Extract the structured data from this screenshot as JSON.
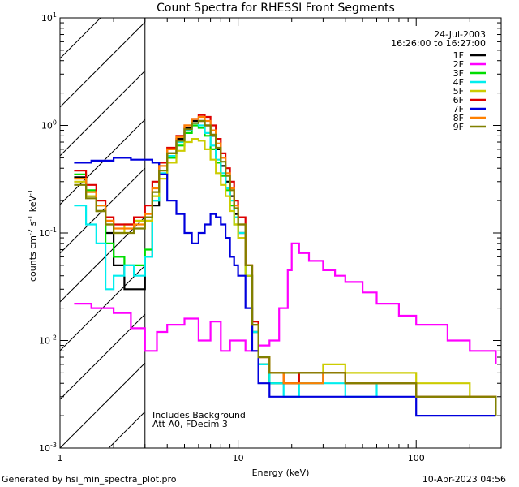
{
  "chart_data": {
    "type": "line",
    "title": "Count Spectra for RHESSI Front Segments",
    "xlabel": "Energy (keV)",
    "ylabel_parts": [
      "counts cm",
      "-2",
      " s",
      "-1",
      " keV",
      "-1"
    ],
    "x_scale": "log",
    "y_scale": "log",
    "xlim": [
      1,
      300
    ],
    "ylim": [
      0.001,
      10
    ],
    "x_ticks": [
      {
        "value": 1,
        "label": "1"
      },
      {
        "value": 10,
        "label": "10"
      },
      {
        "value": 100,
        "label": "100"
      }
    ],
    "y_ticks": [
      {
        "value": 0.001,
        "base": "10",
        "exp": "-3"
      },
      {
        "value": 0.01,
        "base": "10",
        "exp": "-2"
      },
      {
        "value": 0.1,
        "base": "10",
        "exp": "-1"
      },
      {
        "value": 1,
        "base": "10",
        "exp": "0"
      },
      {
        "value": 10,
        "base": "10",
        "exp": "1"
      }
    ],
    "date": "24-Jul-2003",
    "time_range": "16:26:00 to 16:27:00",
    "annotations": [
      "Includes Background",
      "Att A0, FDecim 3"
    ],
    "excluded_region_keV": [
      1,
      3
    ],
    "footer_left": "Generated by hsi_min_spectra_plot.pro",
    "footer_right": "10-Apr-2023 04:56",
    "legend_position": "top-right",
    "series": [
      {
        "name": "1F",
        "color": "#000000",
        "x": [
          1.2,
          1.4,
          1.6,
          1.8,
          2.0,
          2.3,
          2.6,
          3.0,
          3.3,
          3.6,
          4.0,
          4.5,
          5.0,
          5.5,
          6.0,
          6.5,
          7.0,
          7.5,
          8.0,
          8.5,
          9.0,
          9.5,
          10,
          11,
          12,
          13,
          15,
          18,
          22,
          30,
          40,
          60,
          100,
          200,
          280
        ],
        "y": [
          0.33,
          0.22,
          0.16,
          0.1,
          0.05,
          0.03,
          0.03,
          0.06,
          0.18,
          0.35,
          0.55,
          0.75,
          0.95,
          1.1,
          1.1,
          1.0,
          0.8,
          0.6,
          0.42,
          0.3,
          0.22,
          0.15,
          0.1,
          0.04,
          0.012,
          0.006,
          0.004,
          0.004,
          0.004,
          0.005,
          0.004,
          0.004,
          0.003,
          0.003,
          0.002
        ]
      },
      {
        "name": "2F",
        "color": "#ff00ff",
        "x": [
          1.2,
          1.5,
          2.0,
          2.5,
          3.0,
          3.5,
          4.0,
          5.0,
          6.0,
          7.0,
          8.0,
          9.0,
          10,
          11,
          12,
          13,
          15,
          17,
          19,
          20,
          22,
          25,
          30,
          35,
          40,
          50,
          60,
          80,
          100,
          150,
          200,
          280
        ],
        "y": [
          0.022,
          0.02,
          0.018,
          0.013,
          0.008,
          0.012,
          0.014,
          0.016,
          0.01,
          0.015,
          0.008,
          0.01,
          0.01,
          0.008,
          0.008,
          0.009,
          0.01,
          0.02,
          0.045,
          0.08,
          0.065,
          0.055,
          0.045,
          0.04,
          0.035,
          0.028,
          0.022,
          0.017,
          0.014,
          0.01,
          0.008,
          0.006
        ]
      },
      {
        "name": "3F",
        "color": "#00dd00",
        "x": [
          1.2,
          1.4,
          1.6,
          1.8,
          2.0,
          2.3,
          2.6,
          3.0,
          3.3,
          3.6,
          4.0,
          4.5,
          5.0,
          5.5,
          6.0,
          6.5,
          7.0,
          7.5,
          8.0,
          8.5,
          9.0,
          9.5,
          10,
          11,
          12,
          13,
          15,
          18,
          22,
          30,
          40,
          60,
          100,
          200,
          280
        ],
        "y": [
          0.35,
          0.25,
          0.18,
          0.08,
          0.06,
          0.05,
          0.05,
          0.07,
          0.2,
          0.35,
          0.5,
          0.65,
          0.85,
          1.0,
          0.95,
          0.8,
          0.6,
          0.45,
          0.34,
          0.25,
          0.18,
          0.12,
          0.09,
          0.04,
          0.012,
          0.006,
          0.004,
          0.004,
          0.005,
          0.005,
          0.004,
          0.004,
          0.003,
          0.003,
          0.002
        ]
      },
      {
        "name": "4F",
        "color": "#00eeee",
        "x": [
          1.2,
          1.4,
          1.6,
          1.8,
          2.0,
          2.3,
          2.6,
          3.0,
          3.3,
          3.6,
          4.0,
          4.5,
          5.0,
          5.5,
          6.0,
          6.5,
          7.0,
          7.5,
          8.0,
          8.5,
          9.0,
          9.5,
          10,
          11,
          12,
          13,
          15,
          18,
          22,
          30,
          40,
          60,
          100,
          200,
          280
        ],
        "y": [
          0.18,
          0.12,
          0.08,
          0.03,
          0.04,
          0.05,
          0.04,
          0.06,
          0.2,
          0.36,
          0.52,
          0.7,
          0.9,
          1.05,
          1.0,
          0.85,
          0.65,
          0.48,
          0.36,
          0.26,
          0.2,
          0.14,
          0.1,
          0.04,
          0.012,
          0.006,
          0.004,
          0.003,
          0.004,
          0.004,
          0.003,
          0.004,
          0.003,
          0.003,
          0.002
        ]
      },
      {
        "name": "5F",
        "color": "#cccc00",
        "x": [
          1.2,
          1.4,
          1.6,
          1.8,
          2.0,
          2.3,
          2.6,
          3.0,
          3.3,
          3.6,
          4.0,
          4.5,
          5.0,
          5.5,
          6.0,
          6.5,
          7.0,
          7.5,
          8.0,
          8.5,
          9.0,
          9.5,
          10,
          11,
          12,
          13,
          15,
          18,
          22,
          30,
          40,
          60,
          100,
          200,
          280
        ],
        "y": [
          0.3,
          0.22,
          0.16,
          0.12,
          0.1,
          0.12,
          0.13,
          0.13,
          0.22,
          0.32,
          0.45,
          0.58,
          0.7,
          0.75,
          0.72,
          0.6,
          0.48,
          0.36,
          0.28,
          0.22,
          0.16,
          0.12,
          0.09,
          0.04,
          0.015,
          0.007,
          0.005,
          0.005,
          0.005,
          0.006,
          0.005,
          0.005,
          0.004,
          0.003,
          0.002
        ]
      },
      {
        "name": "6F",
        "color": "#dd0000",
        "x": [
          1.2,
          1.4,
          1.6,
          1.8,
          2.0,
          2.3,
          2.6,
          3.0,
          3.3,
          3.6,
          4.0,
          4.5,
          5.0,
          5.5,
          6.0,
          6.5,
          7.0,
          7.5,
          8.0,
          8.5,
          9.0,
          9.5,
          10,
          11,
          12,
          13,
          15,
          18,
          22,
          30,
          40,
          60,
          100,
          200,
          280
        ],
        "y": [
          0.38,
          0.28,
          0.2,
          0.14,
          0.12,
          0.12,
          0.14,
          0.18,
          0.3,
          0.45,
          0.62,
          0.8,
          1.0,
          1.15,
          1.25,
          1.2,
          1.0,
          0.75,
          0.55,
          0.4,
          0.3,
          0.2,
          0.14,
          0.05,
          0.015,
          0.007,
          0.005,
          0.004,
          0.005,
          0.005,
          0.004,
          0.004,
          0.003,
          0.003,
          0.002
        ]
      },
      {
        "name": "7F",
        "color": "#0000dd",
        "x": [
          1.2,
          1.5,
          2.0,
          2.5,
          3.0,
          3.3,
          3.6,
          4.0,
          4.5,
          5.0,
          5.5,
          6.0,
          6.5,
          7.0,
          7.5,
          8.0,
          8.5,
          9.0,
          9.5,
          10,
          11,
          12,
          13,
          15,
          18,
          22,
          30,
          40,
          60,
          100,
          200,
          280
        ],
        "y": [
          0.45,
          0.47,
          0.5,
          0.48,
          0.48,
          0.45,
          0.35,
          0.2,
          0.15,
          0.1,
          0.08,
          0.1,
          0.12,
          0.15,
          0.14,
          0.12,
          0.09,
          0.06,
          0.05,
          0.04,
          0.02,
          0.008,
          0.004,
          0.003,
          0.003,
          0.003,
          0.003,
          0.003,
          0.003,
          0.002,
          0.002,
          0.002
        ]
      },
      {
        "name": "8F",
        "color": "#ff8000",
        "x": [
          1.2,
          1.4,
          1.6,
          1.8,
          2.0,
          2.3,
          2.6,
          3.0,
          3.3,
          3.6,
          4.0,
          4.5,
          5.0,
          5.5,
          6.0,
          6.5,
          7.0,
          7.5,
          8.0,
          8.5,
          9.0,
          9.5,
          10,
          11,
          12,
          13,
          15,
          18,
          22,
          30,
          40,
          60,
          100,
          200,
          280
        ],
        "y": [
          0.32,
          0.24,
          0.18,
          0.13,
          0.11,
          0.11,
          0.12,
          0.15,
          0.26,
          0.42,
          0.6,
          0.78,
          1.0,
          1.15,
          1.2,
          1.1,
          0.9,
          0.68,
          0.5,
          0.36,
          0.26,
          0.18,
          0.12,
          0.05,
          0.014,
          0.007,
          0.005,
          0.004,
          0.004,
          0.005,
          0.004,
          0.004,
          0.003,
          0.003,
          0.002
        ]
      },
      {
        "name": "9F",
        "color": "#808000",
        "x": [
          1.2,
          1.4,
          1.6,
          1.8,
          2.0,
          2.3,
          2.6,
          3.0,
          3.3,
          3.6,
          4.0,
          4.5,
          5.0,
          5.5,
          6.0,
          6.5,
          7.0,
          7.5,
          8.0,
          8.5,
          9.0,
          9.5,
          10,
          11,
          12,
          13,
          15,
          18,
          22,
          30,
          40,
          60,
          100,
          200,
          280
        ],
        "y": [
          0.28,
          0.21,
          0.16,
          0.12,
          0.1,
          0.1,
          0.11,
          0.14,
          0.24,
          0.38,
          0.55,
          0.72,
          0.92,
          1.05,
          1.1,
          1.0,
          0.82,
          0.62,
          0.46,
          0.34,
          0.25,
          0.17,
          0.12,
          0.05,
          0.014,
          0.007,
          0.005,
          0.005,
          0.005,
          0.005,
          0.004,
          0.004,
          0.003,
          0.003,
          0.002
        ]
      }
    ]
  }
}
